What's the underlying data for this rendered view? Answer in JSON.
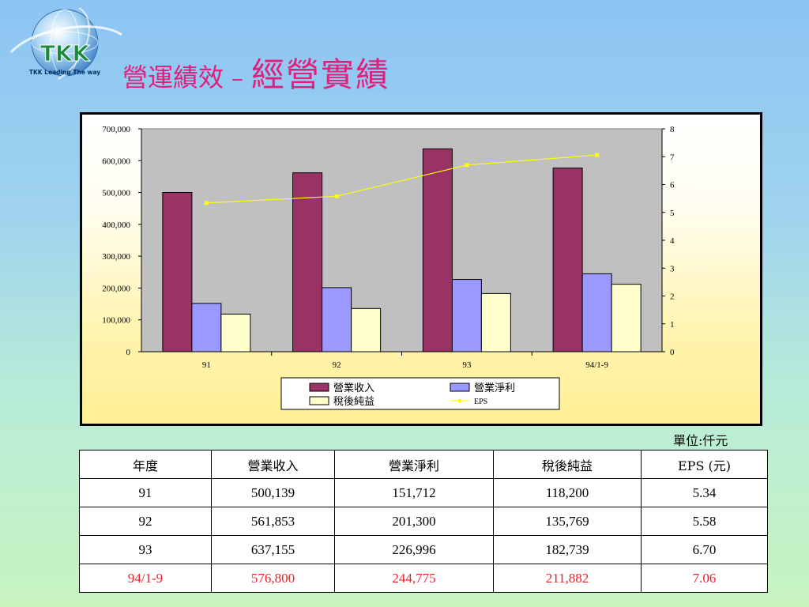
{
  "logo": {
    "text": "TKK",
    "tagline": "TKK Leading The way"
  },
  "title": {
    "part1": "營運績效",
    "separator": "–",
    "part2": "經營實績",
    "color": "#e0207a"
  },
  "unit_note": "單位:仟元",
  "chart_data": {
    "type": "bar",
    "categories": [
      "91",
      "92",
      "93",
      "94/1-9"
    ],
    "series": [
      {
        "name": "營業收入",
        "values": [
          500139,
          561853,
          637155,
          576800
        ],
        "color": "#993366",
        "axis": "left"
      },
      {
        "name": "營業淨利",
        "values": [
          151712,
          201300,
          226996,
          244775
        ],
        "color": "#9999ff",
        "axis": "left"
      },
      {
        "name": "稅後純益",
        "values": [
          118200,
          135769,
          182739,
          211882
        ],
        "color": "#ffffcc",
        "axis": "left"
      },
      {
        "name": "EPS",
        "type": "line",
        "values": [
          5.34,
          5.58,
          6.7,
          7.06
        ],
        "color": "#ffff00",
        "axis": "right"
      }
    ],
    "ylim": [
      0,
      700000
    ],
    "yticks": [
      "0",
      "100,000",
      "200,000",
      "300,000",
      "400,000",
      "500,000",
      "600,000",
      "700,000"
    ],
    "y2lim": [
      0,
      8
    ],
    "y2ticks": [
      "0",
      "1",
      "2",
      "3",
      "4",
      "5",
      "6",
      "7",
      "8"
    ],
    "plot_background": "#c0c0c0",
    "grid": false,
    "legend_position": "bottom"
  },
  "table": {
    "headers": [
      "年度",
      "營業收入",
      "營業淨利",
      "稅後純益",
      "EPS (元)"
    ],
    "rows": [
      [
        "91",
        "500,139",
        "151,712",
        "118,200",
        "5.34"
      ],
      [
        "92",
        "561,853",
        "201,300",
        "135,769",
        "5.58"
      ],
      [
        "93",
        "637,155",
        "226,996",
        "182,739",
        "6.70"
      ],
      [
        "94/1-9",
        "576,800",
        "244,775",
        "211,882",
        "7.06"
      ]
    ],
    "highlight_row_color": "#e8232a"
  }
}
